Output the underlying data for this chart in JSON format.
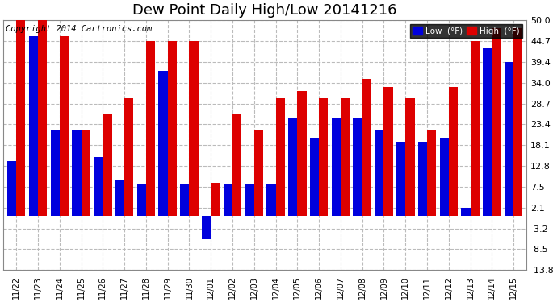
{
  "title": "Dew Point Daily High/Low 20141216",
  "copyright": "Copyright 2014 Cartronics.com",
  "ylabel_right_ticks": [
    50.0,
    44.7,
    39.4,
    34.0,
    28.7,
    23.4,
    18.1,
    12.8,
    7.5,
    2.1,
    -3.2,
    -8.5,
    -13.8
  ],
  "ylim": [
    -13.8,
    50.0
  ],
  "background_color": "#ffffff",
  "grid_color": "#bbbbbb",
  "dates": [
    "11/22",
    "11/23",
    "11/24",
    "11/25",
    "11/26",
    "11/27",
    "11/28",
    "11/29",
    "11/30",
    "12/01",
    "12/02",
    "12/03",
    "12/04",
    "12/05",
    "12/06",
    "12/07",
    "12/08",
    "12/09",
    "12/10",
    "12/11",
    "12/12",
    "12/13",
    "12/14",
    "12/15"
  ],
  "low_values": [
    14.0,
    46.0,
    22.0,
    22.0,
    15.0,
    9.0,
    8.0,
    37.0,
    8.0,
    -6.0,
    8.0,
    8.0,
    8.0,
    25.0,
    20.0,
    25.0,
    25.0,
    22.0,
    19.0,
    19.0,
    20.0,
    2.1,
    43.0,
    39.4
  ],
  "high_values": [
    50.0,
    50.0,
    46.0,
    22.0,
    26.0,
    30.0,
    44.7,
    44.7,
    44.7,
    8.5,
    26.0,
    22.0,
    30.0,
    32.0,
    30.0,
    30.0,
    35.0,
    33.0,
    30.0,
    22.0,
    33.0,
    44.7,
    48.0,
    48.0
  ],
  "low_color": "#0000dd",
  "high_color": "#dd0000",
  "legend_low_label": "Low  (°F)",
  "legend_high_label": "High  (°F)",
  "title_fontsize": 13,
  "copyright_fontsize": 7.5,
  "figwidth": 6.9,
  "figheight": 3.75,
  "dpi": 100
}
